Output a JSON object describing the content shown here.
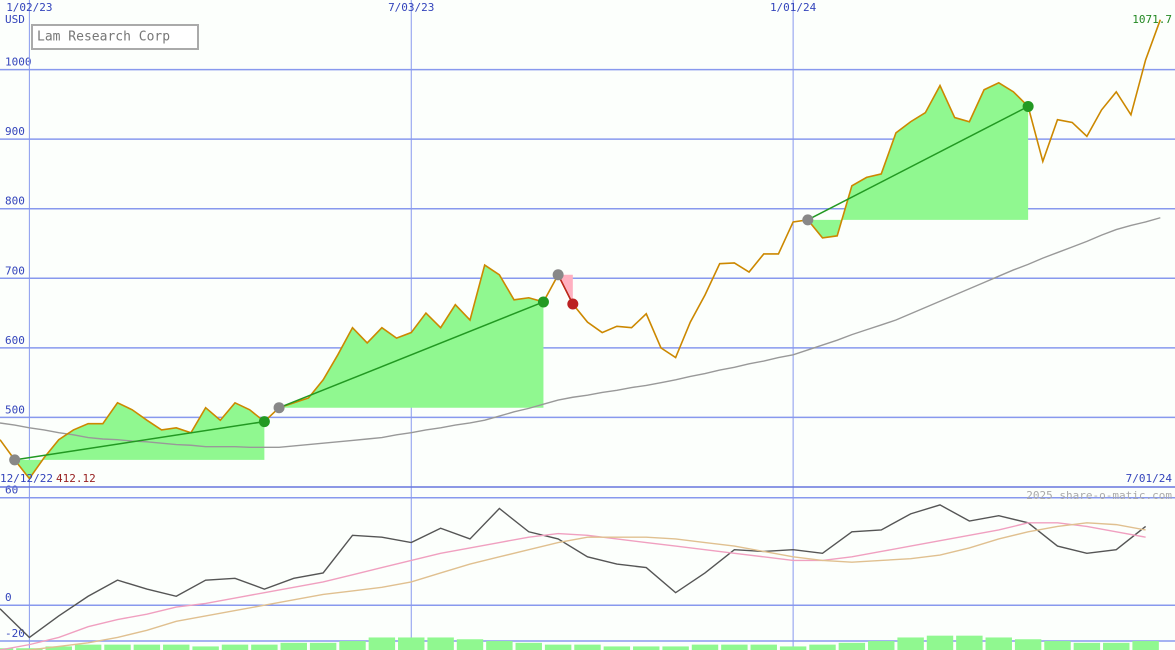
{
  "chart_data": [
    {
      "type": "line",
      "title": "Lam Research Corp",
      "y_unit": "USD",
      "start_label": "12/12/22",
      "end_label": "7/01/24",
      "x": [
        -2,
        -1,
        0,
        1,
        2,
        3,
        4,
        5,
        6,
        7,
        8,
        9,
        10,
        11,
        12,
        13,
        14,
        15,
        16,
        17,
        18,
        19,
        20,
        21,
        22,
        23,
        24,
        25,
        26,
        27,
        28,
        29,
        30,
        31,
        32,
        33,
        34,
        35,
        36,
        37,
        38,
        39,
        40,
        41,
        42,
        43,
        44,
        45,
        46,
        47,
        48,
        49,
        50,
        51,
        52,
        53,
        54,
        55,
        56,
        57,
        58,
        59,
        60,
        61,
        62,
        63,
        64,
        65,
        66,
        67,
        68,
        69,
        70,
        71,
        72,
        73,
        74,
        75,
        76,
        77
      ],
      "xlim": [
        -2,
        78
      ],
      "xticks": [
        {
          "value": 0,
          "label": "1/02/23"
        },
        {
          "value": 26,
          "label": "7/03/23"
        },
        {
          "value": 52,
          "label": "1/01/24"
        }
      ],
      "ylim": [
        400,
        1100
      ],
      "yticks": [
        500,
        600,
        700,
        800,
        900,
        1000
      ],
      "grid": true,
      "series": [
        {
          "color": "#cc8800",
          "values": [
            468,
            439,
            412.12,
            442,
            468,
            482,
            491,
            491,
            521,
            511,
            496,
            482,
            485,
            478,
            514,
            496,
            521,
            511,
            494,
            514,
            521,
            528,
            554,
            590,
            629,
            607,
            629,
            614,
            622,
            650,
            629,
            662,
            640,
            719,
            705,
            669,
            672,
            666,
            705,
            663,
            637,
            622,
            631,
            629,
            649,
            600,
            586,
            637,
            676,
            721,
            722,
            709,
            735,
            735,
            781,
            784,
            758,
            761,
            833,
            845,
            850,
            909,
            925,
            938,
            977,
            931,
            925,
            971,
            981,
            968,
            947,
            868,
            928,
            924,
            904,
            942,
            968,
            935,
            1014,
            1071.7
          ]
        },
        {
          "color": "#999999",
          "values": [
            492,
            489,
            485,
            482,
            478,
            475,
            471,
            469,
            468,
            466,
            465,
            463,
            461,
            460,
            458,
            458,
            458,
            457,
            457,
            457,
            459,
            461,
            463,
            465,
            467,
            469,
            471,
            475,
            478,
            482,
            485,
            489,
            492,
            496,
            502,
            508,
            513,
            519,
            525,
            529,
            532,
            536,
            539,
            543,
            546,
            550,
            554,
            559,
            563,
            568,
            572,
            577,
            581,
            586,
            590,
            597,
            604,
            611,
            619,
            626,
            633,
            640,
            649,
            658,
            667,
            676,
            685,
            694,
            703,
            712,
            720,
            729,
            737,
            745,
            753,
            762,
            770,
            776,
            781,
            787
          ]
        }
      ],
      "signals": [
        {
          "start": -1,
          "end": 16,
          "color": "#229922",
          "fill": "#90f890"
        },
        {
          "start": 17,
          "end": 35,
          "color": "#229922",
          "fill": "#90f890"
        },
        {
          "start": 36,
          "end": 37,
          "color": "#bb2222",
          "fill": "#ffb0c0"
        },
        {
          "start": 53,
          "end": 68,
          "color": "#229922",
          "fill": "#90f890"
        }
      ]
    },
    {
      "type": "line",
      "credit": "2025 share-o-matic.com",
      "x": [
        -2,
        0,
        2,
        4,
        6,
        8,
        10,
        12,
        14,
        16,
        18,
        20,
        22,
        24,
        26,
        28,
        30,
        32,
        34,
        36,
        38,
        40,
        42,
        44,
        46,
        48,
        50,
        52,
        54,
        56,
        58,
        60,
        62,
        64,
        66,
        68,
        70,
        72,
        74,
        76
      ],
      "xlim": [
        -2,
        78
      ],
      "ylim": [
        -25,
        66
      ],
      "yticks": [
        60,
        0,
        -20
      ],
      "bars": {
        "color": "#90f890",
        "values": [
          -24,
          -24,
          -23,
          -22,
          -22,
          -22,
          -22,
          -23,
          -22,
          -22,
          -21,
          -21,
          -20,
          -18,
          -18,
          -18,
          -19,
          -20,
          -21,
          -22,
          -22,
          -23,
          -23,
          -23,
          -22,
          -22,
          -22,
          -23,
          -22,
          -21,
          -20,
          -18,
          -17,
          -17,
          -18,
          -19,
          -20,
          -21,
          -21,
          -20
        ]
      },
      "series": [
        {
          "color": "#e0c090",
          "values": [
            -26,
            -25,
            -23,
            -21,
            -18,
            -14,
            -9,
            -6,
            -3,
            0,
            3,
            6,
            8,
            10,
            13,
            18,
            23,
            27,
            31,
            35,
            38,
            38,
            38,
            37,
            35,
            33,
            30,
            27,
            25,
            24,
            25,
            26,
            28,
            32,
            37,
            41,
            44,
            46,
            45,
            42
          ]
        },
        {
          "color": "#f0a0c0",
          "values": [
            -25,
            -22,
            -18,
            -12,
            -8,
            -5,
            -1,
            1,
            4,
            7,
            10,
            13,
            17,
            21,
            25,
            29,
            32,
            35,
            38,
            40,
            39,
            37,
            35,
            33,
            31,
            29,
            27,
            25,
            25,
            27,
            30,
            33,
            36,
            39,
            42,
            46,
            46,
            44,
            41,
            38
          ]
        },
        {
          "color": "#555555",
          "values": [
            -2,
            -18,
            -6,
            5,
            14,
            9,
            5,
            14,
            15,
            9,
            15,
            18,
            39,
            38,
            35,
            43,
            37,
            54,
            41,
            37,
            27,
            23,
            21,
            7,
            18,
            31,
            30,
            31,
            29,
            41,
            42,
            51,
            56,
            47,
            50,
            46,
            33,
            29,
            31,
            44
          ]
        }
      ]
    }
  ]
}
